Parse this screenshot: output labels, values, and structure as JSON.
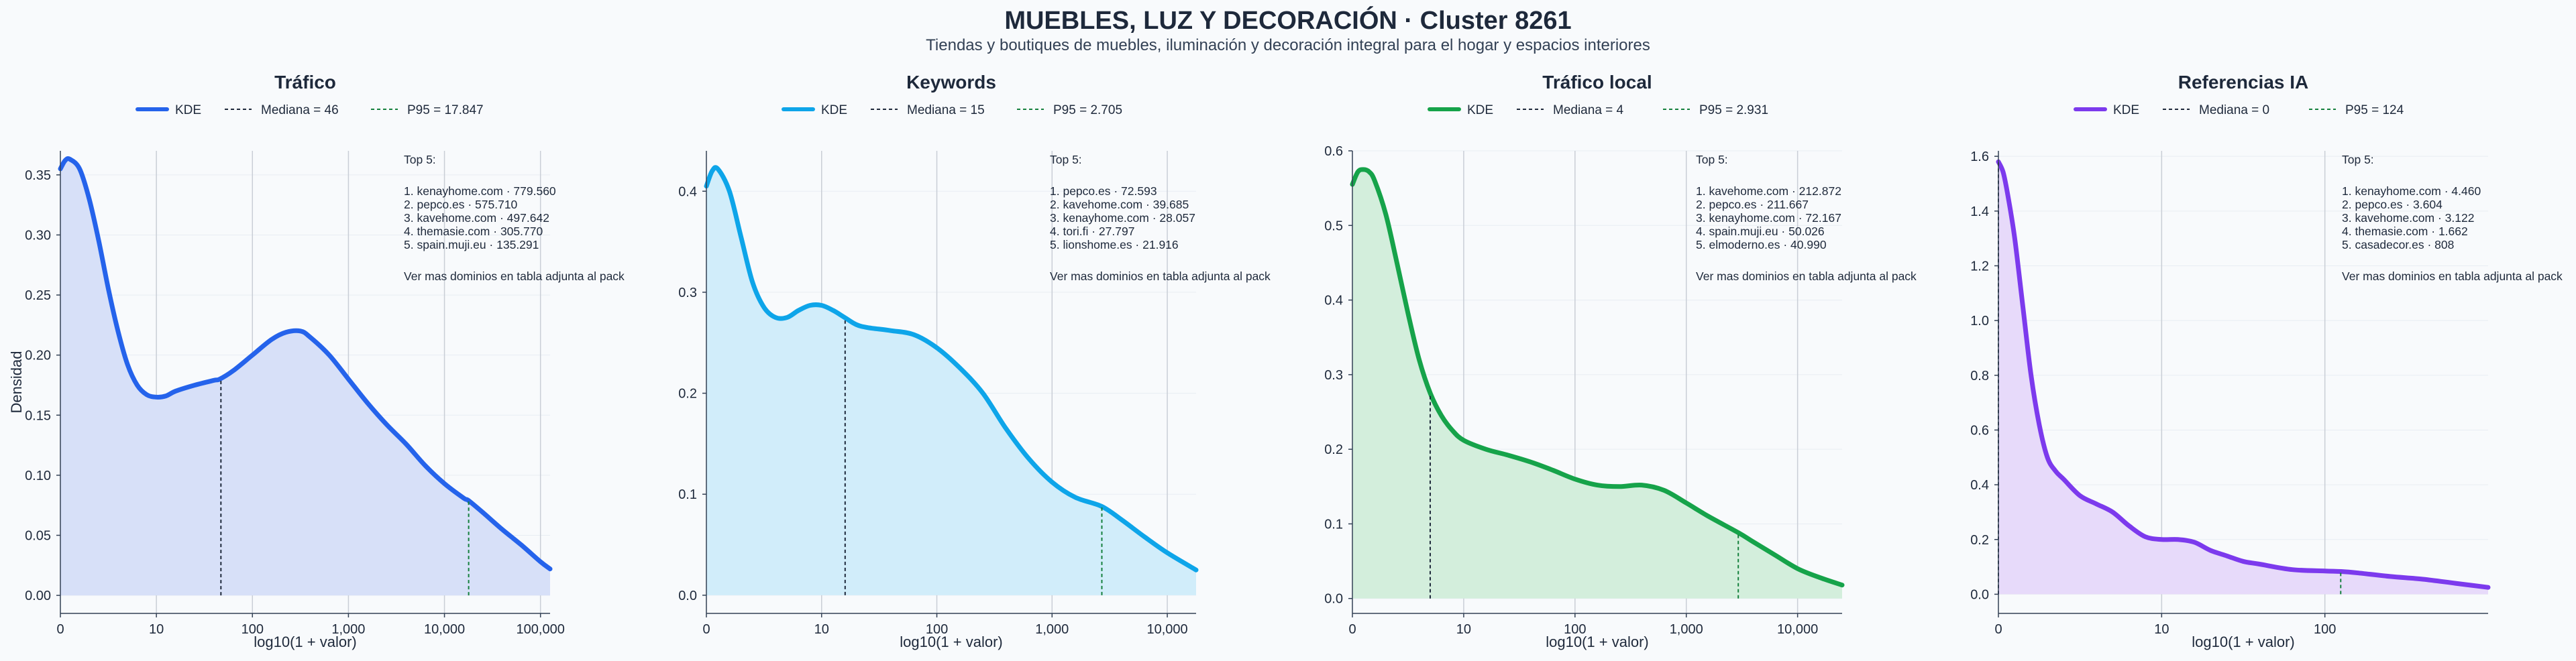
{
  "page": {
    "title": "MUEBLES, LUZ Y DECORACIÓN · Cluster 8261",
    "subtitle": "Tiendas y boutiques de muebles, iluminación y decoración integral para el hogar y espacios interiores"
  },
  "chart_data": [
    {
      "type": "area",
      "title": "Tráfico",
      "color": "#2563eb",
      "fill": "#d7e0f8",
      "xlabel": "log10(1 + valor)",
      "ylabel": "Densidad",
      "xscale": "log10(1 + valor)",
      "xlim": [
        0,
        5.1
      ],
      "ylim": [
        -0.015,
        0.37
      ],
      "x_ticks": [
        {
          "x": 0,
          "label": "0"
        },
        {
          "x": 1,
          "label": "10"
        },
        {
          "x": 2,
          "label": "100"
        },
        {
          "x": 3,
          "label": "1,000"
        },
        {
          "x": 4,
          "label": "10,000"
        },
        {
          "x": 5,
          "label": "100,000"
        }
      ],
      "y_ticks": [
        {
          "y": 0,
          "label": "0.00"
        },
        {
          "y": 0.05,
          "label": "0.05"
        },
        {
          "y": 0.1,
          "label": "0.10"
        },
        {
          "y": 0.15,
          "label": "0.15"
        },
        {
          "y": 0.2,
          "label": "0.20"
        },
        {
          "y": 0.25,
          "label": "0.25"
        },
        {
          "y": 0.3,
          "label": "0.30"
        },
        {
          "y": 0.35,
          "label": "0.35"
        }
      ],
      "series": [
        {
          "name": "KDE",
          "x": [
            0,
            0.05,
            0.1,
            0.2,
            0.3,
            0.4,
            0.5,
            0.6,
            0.7,
            0.8,
            0.9,
            1.0,
            1.1,
            1.2,
            1.4,
            1.6,
            1.66,
            1.8,
            2.0,
            2.2,
            2.35,
            2.5,
            2.6,
            2.8,
            3.0,
            3.2,
            3.4,
            3.6,
            3.8,
            4.0,
            4.2,
            4.25,
            4.4,
            4.6,
            4.8,
            5.0,
            5.1
          ],
          "y": [
            0.355,
            0.362,
            0.363,
            0.355,
            0.33,
            0.295,
            0.255,
            0.22,
            0.192,
            0.175,
            0.167,
            0.165,
            0.166,
            0.17,
            0.175,
            0.179,
            0.18,
            0.187,
            0.2,
            0.213,
            0.219,
            0.22,
            0.215,
            0.2,
            0.18,
            0.16,
            0.142,
            0.126,
            0.108,
            0.093,
            0.081,
            0.079,
            0.069,
            0.055,
            0.042,
            0.028,
            0.022
          ]
        }
      ],
      "markers": [
        {
          "name": "Mediana = 46",
          "x": 1.672,
          "y": 0.18,
          "color": "#1e293b"
        },
        {
          "name": "P95 = 17.847",
          "x": 4.252,
          "y": 0.079,
          "color": "#15803d"
        }
      ],
      "legend": {
        "position": "top",
        "entries": [
          "KDE",
          "Mediana = 46",
          "P95 = 17.847"
        ]
      },
      "top5": [
        "Top 5:",
        "1. kenayhome.com · 779.560",
        "2. pepco.es · 575.710",
        "3. kavehome.com · 497.642",
        "4. themasie.com · 305.770",
        "5. spain.muji.eu · 135.291",
        "Ver mas dominios en tabla adjunta al pack"
      ]
    },
    {
      "type": "area",
      "title": "Keywords",
      "color": "#0ea5e9",
      "fill": "#d1edfa",
      "xlabel": "log10(1 + valor)",
      "ylabel": "",
      "xlim": [
        0,
        4.25
      ],
      "ylim": [
        -0.018,
        0.44
      ],
      "x_ticks": [
        {
          "x": 0,
          "label": "0"
        },
        {
          "x": 1,
          "label": "10"
        },
        {
          "x": 2,
          "label": "100"
        },
        {
          "x": 3,
          "label": "1,000"
        },
        {
          "x": 4,
          "label": "10,000"
        }
      ],
      "y_ticks": [
        {
          "y": 0,
          "label": "0.0"
        },
        {
          "y": 0.1,
          "label": "0.1"
        },
        {
          "y": 0.2,
          "label": "0.2"
        },
        {
          "y": 0.3,
          "label": "0.3"
        },
        {
          "y": 0.4,
          "label": "0.4"
        }
      ],
      "series": [
        {
          "name": "KDE",
          "x": [
            0,
            0.05,
            0.1,
            0.2,
            0.3,
            0.4,
            0.5,
            0.6,
            0.7,
            0.8,
            0.9,
            1.0,
            1.1,
            1.2,
            1.3,
            1.4,
            1.6,
            1.8,
            2.0,
            2.2,
            2.4,
            2.6,
            2.8,
            3.0,
            3.2,
            3.43,
            3.6,
            3.8,
            4.0,
            4.25
          ],
          "y": [
            0.405,
            0.42,
            0.422,
            0.4,
            0.355,
            0.31,
            0.285,
            0.275,
            0.275,
            0.282,
            0.287,
            0.287,
            0.282,
            0.275,
            0.268,
            0.265,
            0.262,
            0.258,
            0.245,
            0.225,
            0.2,
            0.165,
            0.135,
            0.112,
            0.097,
            0.088,
            0.075,
            0.058,
            0.042,
            0.025
          ]
        }
      ],
      "markers": [
        {
          "name": "Mediana = 15",
          "x": 1.204,
          "y": 0.272,
          "color": "#1e293b"
        },
        {
          "name": "P95 = 2.705",
          "x": 3.432,
          "y": 0.088,
          "color": "#15803d"
        }
      ],
      "legend": {
        "position": "top",
        "entries": [
          "KDE",
          "Mediana = 15",
          "P95 = 2.705"
        ]
      },
      "top5": [
        "Top 5:",
        "1. pepco.es · 72.593",
        "2. kavehome.com · 39.685",
        "3. kenayhome.com · 28.057",
        "4. tori.fi · 27.797",
        "5. lionshome.es · 21.916",
        "Ver mas dominios en tabla adjunta al pack"
      ]
    },
    {
      "type": "area",
      "title": "Tráfico local",
      "color": "#16a34a",
      "fill": "#d3eedc",
      "xlabel": "log10(1 + valor)",
      "ylabel": "",
      "xlim": [
        0,
        4.4
      ],
      "ylim": [
        -0.02,
        0.6
      ],
      "x_ticks": [
        {
          "x": 0,
          "label": "0"
        },
        {
          "x": 1,
          "label": "10"
        },
        {
          "x": 2,
          "label": "100"
        },
        {
          "x": 3,
          "label": "1,000"
        },
        {
          "x": 4,
          "label": "10,000"
        }
      ],
      "y_ticks": [
        {
          "y": 0,
          "label": "0.0"
        },
        {
          "y": 0.1,
          "label": "0.1"
        },
        {
          "y": 0.2,
          "label": "0.2"
        },
        {
          "y": 0.3,
          "label": "0.3"
        },
        {
          "y": 0.4,
          "label": "0.4"
        },
        {
          "y": 0.5,
          "label": "0.5"
        },
        {
          "y": 0.6,
          "label": "0.6"
        }
      ],
      "series": [
        {
          "name": "KDE",
          "x": [
            0,
            0.05,
            0.1,
            0.15,
            0.2,
            0.3,
            0.4,
            0.5,
            0.6,
            0.7,
            0.8,
            0.9,
            1.0,
            1.2,
            1.4,
            1.6,
            1.8,
            2.0,
            2.2,
            2.4,
            2.6,
            2.8,
            3.0,
            3.2,
            3.47,
            3.6,
            3.8,
            4.0,
            4.2,
            4.4
          ],
          "y": [
            0.555,
            0.572,
            0.575,
            0.572,
            0.56,
            0.515,
            0.45,
            0.382,
            0.32,
            0.275,
            0.245,
            0.225,
            0.212,
            0.2,
            0.192,
            0.183,
            0.172,
            0.16,
            0.152,
            0.15,
            0.152,
            0.145,
            0.128,
            0.11,
            0.088,
            0.076,
            0.058,
            0.04,
            0.028,
            0.018
          ]
        }
      ],
      "markers": [
        {
          "name": "Mediana = 4",
          "x": 0.699,
          "y": 0.275,
          "color": "#1e293b"
        },
        {
          "name": "P95 = 2.931",
          "x": 3.467,
          "y": 0.088,
          "color": "#15803d"
        }
      ],
      "legend": {
        "position": "top",
        "entries": [
          "KDE",
          "Mediana = 4",
          "P95 = 2.931"
        ]
      },
      "top5": [
        "Top 5:",
        "1. kavehome.com · 212.872",
        "2. pepco.es · 211.667",
        "3. kenayhome.com · 72.167",
        "4. spain.muji.eu · 50.026",
        "5. elmoderno.es · 40.990",
        "Ver mas dominios en tabla adjunta al pack"
      ]
    },
    {
      "type": "area",
      "title": "Referencias IA",
      "color": "#7c3aed",
      "fill": "#e7dafa",
      "xlabel": "log10(1 + valor)",
      "ylabel": "",
      "xlim": [
        0,
        3.0
      ],
      "ylim": [
        -0.07,
        1.62
      ],
      "x_ticks": [
        {
          "x": 0,
          "label": "0"
        },
        {
          "x": 1,
          "label": "10"
        },
        {
          "x": 2,
          "label": "100"
        }
      ],
      "y_ticks": [
        {
          "y": 0,
          "label": "0.0"
        },
        {
          "y": 0.2,
          "label": "0.2"
        },
        {
          "y": 0.4,
          "label": "0.4"
        },
        {
          "y": 0.6,
          "label": "0.6"
        },
        {
          "y": 0.8,
          "label": "0.8"
        },
        {
          "y": 1.0,
          "label": "1.0"
        },
        {
          "y": 1.2,
          "label": "1.2"
        },
        {
          "y": 1.4,
          "label": "1.4"
        },
        {
          "y": 1.6,
          "label": "1.6"
        }
      ],
      "series": [
        {
          "name": "KDE",
          "x": [
            0,
            0.03,
            0.06,
            0.1,
            0.15,
            0.2,
            0.25,
            0.3,
            0.35,
            0.4,
            0.5,
            0.6,
            0.7,
            0.8,
            0.9,
            1.0,
            1.1,
            1.2,
            1.3,
            1.4,
            1.5,
            1.6,
            1.8,
            2.0,
            2.1,
            2.2,
            2.4,
            2.6,
            2.8,
            3.0
          ],
          "y": [
            1.58,
            1.54,
            1.45,
            1.3,
            1.05,
            0.8,
            0.62,
            0.5,
            0.45,
            0.42,
            0.36,
            0.33,
            0.3,
            0.25,
            0.21,
            0.2,
            0.2,
            0.19,
            0.16,
            0.14,
            0.12,
            0.11,
            0.09,
            0.085,
            0.083,
            0.078,
            0.065,
            0.055,
            0.04,
            0.025
          ]
        }
      ],
      "markers": [
        {
          "name": "Mediana = 0",
          "x": 0,
          "y": 1.58,
          "color": "#1e293b"
        },
        {
          "name": "P95 = 124",
          "x": 2.097,
          "y": 0.083,
          "color": "#15803d"
        }
      ],
      "legend": {
        "position": "top",
        "entries": [
          "KDE",
          "Mediana = 0",
          "P95 = 124"
        ]
      },
      "top5": [
        "Top 5:",
        "1. kenayhome.com · 4.460",
        "2. pepco.es · 3.604",
        "3. kavehome.com · 3.122",
        "4. themasie.com · 1.662",
        "5. casadecor.es · 808",
        "Ver mas dominios en tabla adjunta al pack"
      ]
    }
  ]
}
